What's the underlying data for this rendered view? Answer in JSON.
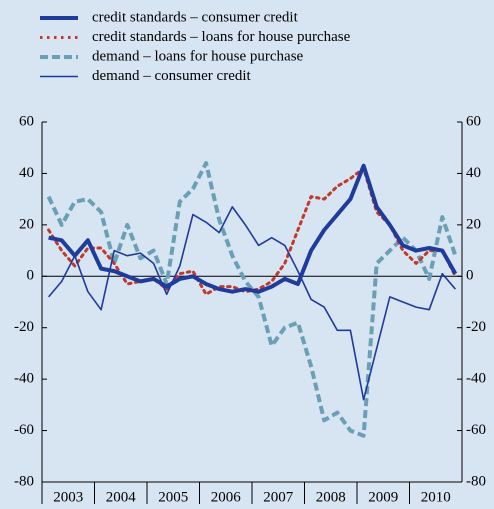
{
  "chart_data": {
    "type": "line",
    "categories": [
      "2003",
      null,
      null,
      null,
      "2004",
      null,
      null,
      null,
      "2005",
      null,
      null,
      null,
      "2006",
      null,
      null,
      null,
      "2007",
      null,
      null,
      null,
      "2008",
      null,
      null,
      null,
      "2009",
      null,
      null,
      null,
      "2010",
      null,
      null,
      null
    ],
    "series": [
      {
        "name": "credit standards – consumer credit",
        "color": "#1f3b9b",
        "style": "thick",
        "values": [
          15,
          14,
          8,
          14,
          3,
          2,
          0,
          -2,
          -1,
          -4,
          -1,
          0,
          -3,
          -5,
          -6,
          -5,
          -6,
          -4,
          -1,
          -3,
          10,
          18,
          24,
          30,
          43,
          27,
          20,
          12,
          10,
          11,
          10,
          1
        ]
      },
      {
        "name": "credit standards – loans for house purchase",
        "color": "#c0392b",
        "style": "dotted",
        "values": [
          18,
          10,
          4,
          11,
          11,
          5,
          -3,
          -2,
          -1,
          -5,
          1,
          2,
          -7,
          -4,
          -4,
          -6,
          -5,
          -2,
          5,
          18,
          31,
          30,
          35,
          38,
          42,
          25,
          20,
          10,
          5,
          10,
          10,
          0
        ]
      },
      {
        "name": "demand – loans for house purchase",
        "color": "#6a9fb5",
        "style": "dashed",
        "values": [
          31,
          20,
          29,
          30,
          25,
          5,
          20,
          7,
          10,
          -3,
          29,
          34,
          44,
          22,
          8,
          -2,
          -8,
          -27,
          -20,
          -18,
          -35,
          -56,
          -53,
          -60,
          -62,
          5,
          10,
          15,
          10,
          -1,
          23,
          8
        ]
      },
      {
        "name": "demand – consumer credit",
        "color": "#1f3b9b",
        "style": "thin",
        "values": [
          -8,
          -2,
          8,
          -6,
          -13,
          10,
          8,
          9,
          5,
          -7,
          4,
          24,
          21,
          17,
          27,
          20,
          12,
          15,
          12,
          2,
          -9,
          -12,
          -21,
          -21,
          -48,
          -28,
          -8,
          -10,
          -12,
          -13,
          1,
          -5
        ]
      }
    ],
    "ylim": [
      -80,
      60
    ],
    "yticks": [
      -80,
      -60,
      -40,
      -20,
      0,
      20,
      40,
      60
    ],
    "grid": false,
    "right_axis_labels": true
  }
}
